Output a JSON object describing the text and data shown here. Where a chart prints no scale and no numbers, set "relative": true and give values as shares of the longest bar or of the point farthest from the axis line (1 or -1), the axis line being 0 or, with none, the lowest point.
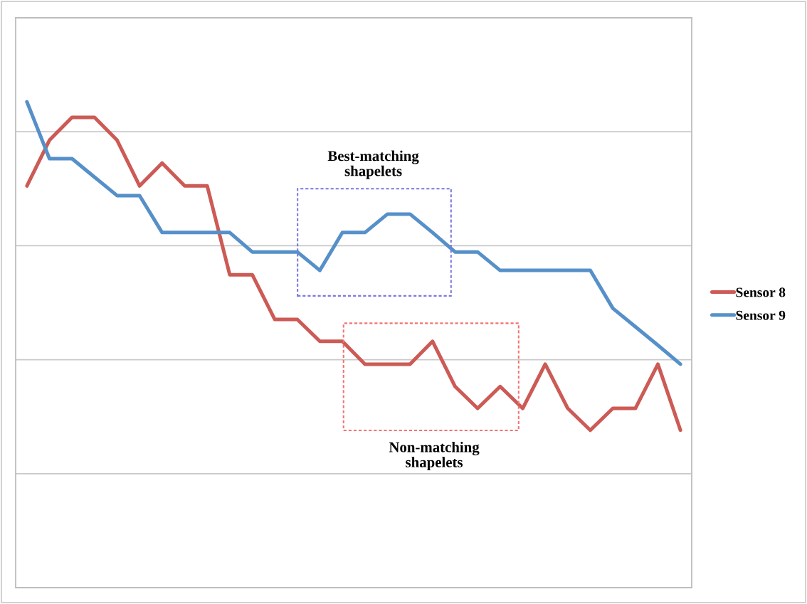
{
  "chart_data": {
    "type": "line",
    "relative": true,
    "grid": "y",
    "legend": "right",
    "categories": [
      null,
      null,
      null,
      null,
      null,
      null,
      null,
      null,
      null,
      null,
      null,
      null,
      null,
      null,
      null,
      null,
      null,
      null,
      null,
      null,
      null,
      null,
      null,
      null,
      null,
      null,
      null,
      null,
      null,
      null
    ],
    "series": [
      {
        "name": "Sensor 8",
        "color": "#cc5a55",
        "values": [
          0.827,
          0.921,
          0.968,
          0.968,
          0.921,
          0.827,
          0.874,
          0.827,
          0.827,
          0.644,
          0.644,
          0.552,
          0.552,
          0.507,
          0.507,
          0.46,
          0.46,
          0.46,
          0.507,
          0.414,
          0.369,
          0.414,
          0.369,
          0.46,
          0.369,
          0.324,
          0.369,
          0.369,
          0.46,
          0.324
        ]
      },
      {
        "name": "Sensor 9",
        "color": "#5690c9",
        "values": [
          1.0,
          0.883,
          0.883,
          0.845,
          0.807,
          0.807,
          0.731,
          0.731,
          0.731,
          0.731,
          0.691,
          0.691,
          0.691,
          0.653,
          0.731,
          0.731,
          0.769,
          0.769,
          0.731,
          0.691,
          0.691,
          0.653,
          0.653,
          0.653,
          0.653,
          0.653,
          0.575,
          0.537,
          0.499,
          0.46
        ]
      }
    ],
    "annotations": [
      "Best-matching\nshapelets",
      "Non-matching\nshapelets"
    ]
  }
}
